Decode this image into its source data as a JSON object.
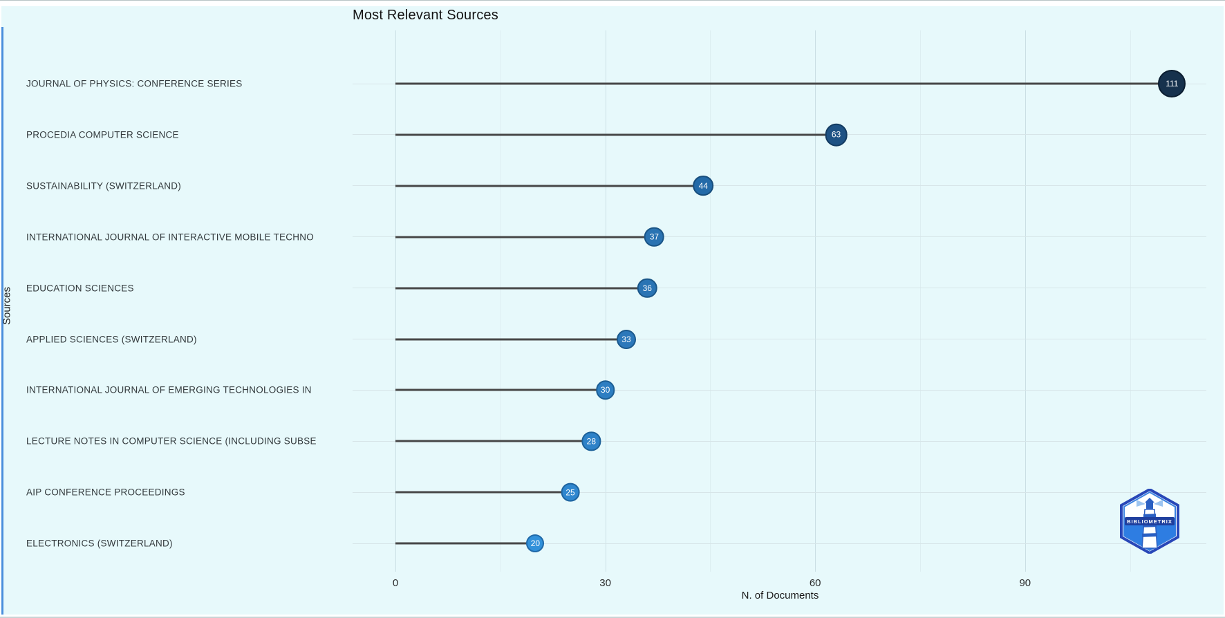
{
  "chart_data": {
    "type": "bar",
    "variant": "horizontal-lollipop",
    "title": "Most Relevant Sources",
    "xlabel": "N. of Documents",
    "ylabel": "Sources",
    "grid": true,
    "legend": false,
    "xlim": [
      -6,
      116.5
    ],
    "xticks": [
      0,
      30,
      60,
      90
    ],
    "xticks_minor": [
      15,
      45,
      75,
      105
    ],
    "categories": [
      "JOURNAL OF PHYSICS: CONFERENCE SERIES",
      "PROCEDIA COMPUTER SCIENCE",
      "SUSTAINABILITY (SWITZERLAND)",
      "INTERNATIONAL JOURNAL OF INTERACTIVE MOBILE TECHNO",
      "EDUCATION SCIENCES",
      "APPLIED SCIENCES (SWITZERLAND)",
      "INTERNATIONAL JOURNAL OF EMERGING TECHNOLOGIES IN",
      "LECTURE NOTES IN COMPUTER SCIENCE (INCLUDING SUBSE",
      "AIP CONFERENCE PROCEEDINGS",
      "ELECTRONICS (SWITZERLAND)"
    ],
    "values": [
      111,
      63,
      44,
      37,
      36,
      33,
      30,
      28,
      25,
      20
    ],
    "point_fill_colors": [
      "#16314d",
      "#1e5284",
      "#236aa8",
      "#2a73b2",
      "#2a74b4",
      "#2c78ba",
      "#2d7ec2",
      "#2e82c8",
      "#2f87cf",
      "#3191da"
    ],
    "point_border_colors": [
      "#0b1d30",
      "#133b61",
      "#174d7c",
      "#1a5587",
      "#1a5688",
      "#1b598d",
      "#1c5e94",
      "#1d6199",
      "#1e64a0",
      "#2069a8"
    ],
    "stem_color": "#474747",
    "background_color": "#e7f9fb"
  },
  "branding": {
    "logo_text": "BIBLIOMETRIX"
  }
}
